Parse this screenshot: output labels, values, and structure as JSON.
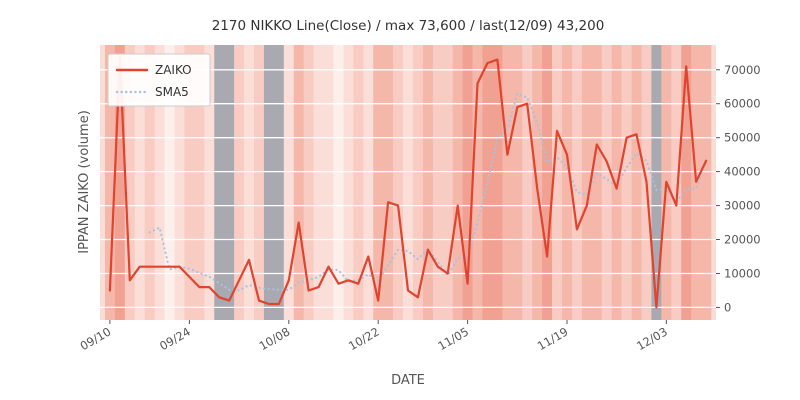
{
  "window": {
    "title": "2170 NIKKO Line(Close) / max 73,600 / last(12/09) 43,200"
  },
  "chart_data": {
    "type": "line",
    "title": "2170 NIKKO Line(Close) / max 73,600 / last(12/09) 43,200",
    "xlabel": "DATE",
    "ylabel": "IPPAN ZAIKO (volume)",
    "ylim": [
      0,
      73600
    ],
    "yticks": [
      0,
      10000,
      20000,
      30000,
      40000,
      50000,
      60000,
      70000
    ],
    "grid": "horizontal-white-on-pink-bands",
    "legend_position": "upper-left",
    "max_value": 73600,
    "last_label": "last(12/09) 43,200",
    "x": [
      "09/10",
      "09/11",
      "09/12",
      "09/13",
      "09/17",
      "09/18",
      "09/19",
      "09/20",
      "09/24",
      "09/25",
      "09/26",
      "09/27",
      "09/30",
      "10/01",
      "10/02",
      "10/03",
      "10/04",
      "10/07",
      "10/08",
      "10/09",
      "10/10",
      "10/11",
      "10/15",
      "10/16",
      "10/17",
      "10/18",
      "10/21",
      "10/22",
      "10/23",
      "10/24",
      "10/25",
      "10/28",
      "10/29",
      "10/30",
      "10/31",
      "11/01",
      "11/05",
      "11/06",
      "11/07",
      "11/08",
      "11/11",
      "11/12",
      "11/13",
      "11/14",
      "11/15",
      "11/18",
      "11/19",
      "11/20",
      "11/21",
      "11/22",
      "11/25",
      "11/26",
      "11/27",
      "11/28",
      "11/29",
      "12/02",
      "12/03",
      "12/04",
      "12/05",
      "12/06",
      "12/09"
    ],
    "xticks": [
      "09/10",
      "09/24",
      "10/08",
      "10/22",
      "11/05",
      "11/19",
      "12/03"
    ],
    "xtick_indices": [
      0,
      8,
      18,
      27,
      36,
      46,
      56
    ],
    "series": [
      {
        "name": "ZAIKO",
        "color": "#e0432e",
        "style": "solid",
        "width": 2.2,
        "values": [
          5000,
          73600,
          8000,
          12000,
          12000,
          12000,
          12000,
          12000,
          9000,
          6000,
          6000,
          3000,
          2000,
          8000,
          14000,
          2000,
          1000,
          1000,
          8000,
          25000,
          5000,
          6000,
          12000,
          7000,
          8000,
          7000,
          15000,
          2000,
          31000,
          30000,
          5000,
          3000,
          17000,
          12000,
          10000,
          30000,
          7000,
          66000,
          72000,
          73000,
          45000,
          59000,
          60000,
          35000,
          15000,
          52000,
          45000,
          23000,
          30000,
          48000,
          43000,
          35000,
          50000,
          51000,
          37000,
          0,
          37000,
          30000,
          71000,
          37000,
          43200
        ]
      },
      {
        "name": "SMA5",
        "color": "#a6c3e1",
        "style": "dotted",
        "dash": "0.1 4.5",
        "width": 2.2,
        "values": [
          null,
          null,
          null,
          null,
          22120,
          23520,
          11200,
          12000,
          11400,
          10200,
          9000,
          7200,
          5200,
          5000,
          6600,
          5800,
          5400,
          5200,
          5200,
          7400,
          8000,
          9000,
          11200,
          11000,
          7600,
          8000,
          9800,
          7800,
          12600,
          17000,
          16600,
          14200,
          17200,
          13400,
          9400,
          14400,
          15200,
          25000,
          37000,
          49600,
          52600,
          63000,
          61800,
          54400,
          42800,
          44200,
          41400,
          34000,
          33000,
          39600,
          37800,
          35800,
          41200,
          45400,
          43200,
          34600,
          35000,
          31000,
          35000,
          35000,
          43640
        ]
      }
    ],
    "background": {
      "plot_bg": "#f9ded7",
      "band_levels": [
        3,
        4,
        2,
        1,
        2,
        1,
        0,
        1,
        2,
        2,
        1,
        "g",
        "g",
        2,
        1,
        2,
        "g",
        "g",
        1,
        3,
        2,
        1,
        1,
        0,
        1,
        2,
        1,
        3,
        3,
        2,
        1,
        2,
        3,
        2,
        2,
        3,
        4,
        3,
        4,
        4,
        3,
        3,
        2,
        3,
        4,
        2,
        3,
        2,
        3,
        3,
        2,
        3,
        2,
        3,
        2,
        "g",
        3,
        2,
        4,
        3,
        3
      ],
      "band_colors": {
        "0": "#fdf0ec",
        "1": "#fbded7",
        "2": "#f8ccc2",
        "3": "#f4b7aa",
        "4": "#f0a192",
        "g": "#a9a9b2"
      }
    },
    "axis_color": "#555555"
  },
  "legend": {
    "items": [
      {
        "label": "ZAIKO"
      },
      {
        "label": "SMA5"
      }
    ]
  }
}
